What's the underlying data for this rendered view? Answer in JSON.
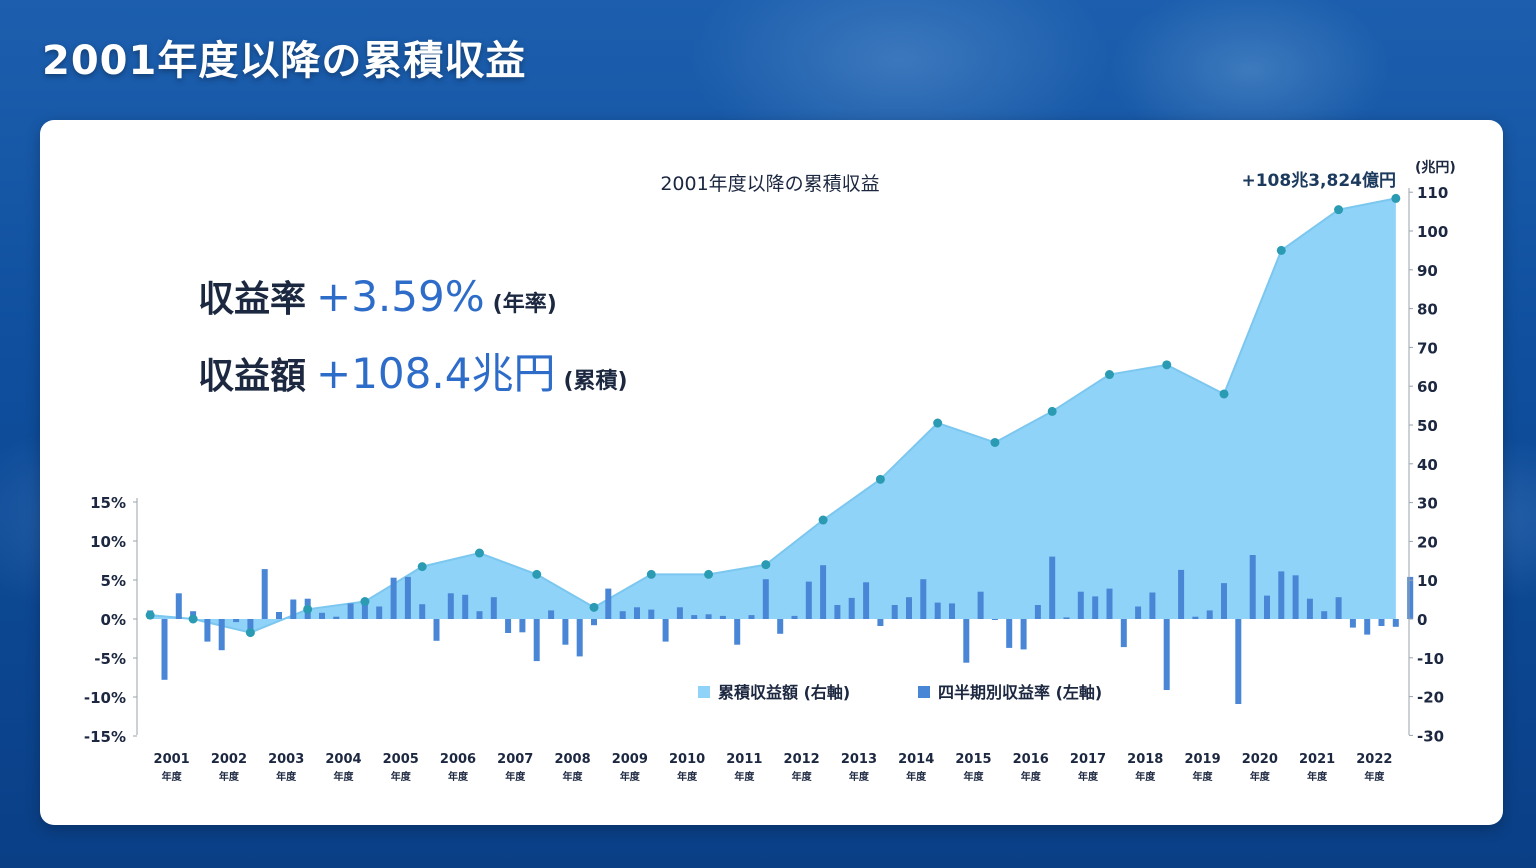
{
  "page": {
    "title": "2001年度以降の累積収益"
  },
  "kpis": [
    {
      "label": "収益率",
      "value": "+3.59%",
      "note": "(年率)"
    },
    {
      "label": "収益額",
      "value": "+108.4兆円",
      "note": "(累積)"
    }
  ],
  "colors": {
    "area": "#8fd3f8",
    "area_line": "#7cc7ef",
    "bar": "#4a86d6",
    "dot": "#2a9bb3",
    "kpi_value": "#2e6cc9"
  },
  "chart_data": {
    "type": "bar+area",
    "title": "2001年度以降の累積収益",
    "callout": "+108兆3,824億円",
    "left_axis": {
      "ticks": [
        "15%",
        "10%",
        "5%",
        "0%",
        "-5%",
        "-10%",
        "-15%"
      ],
      "ylim": [
        -15,
        15
      ]
    },
    "right_axis": {
      "unit": "(兆円)",
      "ticks": [
        "110",
        "100",
        "90",
        "80",
        "70",
        "60",
        "50",
        "40",
        "30",
        "20",
        "10",
        "0",
        "-10",
        "-20",
        "-30"
      ],
      "ylim": [
        -30,
        110
      ]
    },
    "x_labels": [
      {
        "year": "2001",
        "sub": "年度"
      },
      {
        "year": "2002",
        "sub": "年度"
      },
      {
        "year": "2003",
        "sub": "年度"
      },
      {
        "year": "2004",
        "sub": "年度"
      },
      {
        "year": "2005",
        "sub": "年度"
      },
      {
        "year": "2006",
        "sub": "年度"
      },
      {
        "year": "2007",
        "sub": "年度"
      },
      {
        "year": "2008",
        "sub": "年度"
      },
      {
        "year": "2009",
        "sub": "年度"
      },
      {
        "year": "2010",
        "sub": "年度"
      },
      {
        "year": "2011",
        "sub": "年度"
      },
      {
        "year": "2012",
        "sub": "年度"
      },
      {
        "year": "2013",
        "sub": "年度"
      },
      {
        "year": "2014",
        "sub": "年度"
      },
      {
        "year": "2015",
        "sub": "年度"
      },
      {
        "year": "2016",
        "sub": "年度"
      },
      {
        "year": "2017",
        "sub": "年度"
      },
      {
        "year": "2018",
        "sub": "年度"
      },
      {
        "year": "2019",
        "sub": "年度"
      },
      {
        "year": "2020",
        "sub": "年度"
      },
      {
        "year": "2021",
        "sub": "年度"
      },
      {
        "year": "2022",
        "sub": "年度"
      }
    ],
    "series": [
      {
        "name": "累積収益額 (右軸)",
        "type": "area",
        "axis": "right",
        "x": [
          "2001Q1",
          "2001Q4",
          "2002Q4",
          "2003Q4",
          "2004Q4",
          "2005Q4",
          "2006Q4",
          "2007Q4",
          "2008Q4",
          "2009Q4",
          "2010Q4",
          "2011Q4",
          "2012Q4",
          "2013Q4",
          "2014Q4",
          "2015Q4",
          "2016Q4",
          "2017Q4",
          "2018Q4",
          "2019Q4",
          "2020Q4",
          "2021Q4",
          "2022Q4"
        ],
        "values": [
          1.0,
          0.0,
          -3.5,
          2.5,
          4.5,
          13.5,
          17.0,
          11.5,
          3.0,
          11.5,
          11.5,
          14.0,
          25.5,
          36.0,
          50.5,
          45.5,
          53.5,
          63.0,
          65.5,
          58.0,
          95.0,
          105.5,
          108.4
        ]
      },
      {
        "name": "四半期別収益率 (左軸)",
        "type": "bar",
        "axis": "left",
        "values": [
          1.1,
          -7.8,
          3.3,
          1.0,
          -2.9,
          -4.0,
          -0.4,
          -1.5,
          6.4,
          0.9,
          2.5,
          2.6,
          0.8,
          0.3,
          2.0,
          2.1,
          1.6,
          5.3,
          5.4,
          1.9,
          -2.8,
          3.3,
          3.1,
          1.0,
          2.8,
          -1.8,
          -1.7,
          -5.4,
          1.1,
          -3.3,
          -4.8,
          -0.8,
          3.9,
          1.0,
          1.5,
          1.2,
          -2.9,
          1.5,
          0.5,
          0.6,
          0.4,
          -3.3,
          0.5,
          5.1,
          -1.9,
          0.4,
          4.8,
          6.9,
          1.8,
          2.7,
          4.7,
          -0.9,
          1.8,
          2.8,
          5.1,
          2.1,
          2.0,
          -5.6,
          3.5,
          0.0,
          -3.7,
          -3.9,
          1.8,
          8.0,
          0.2,
          3.5,
          2.9,
          3.9,
          -3.6,
          1.6,
          3.4,
          -9.1,
          6.3,
          0.3,
          1.1,
          4.6,
          -10.9,
          8.2,
          3.0,
          6.1,
          5.6,
          2.6,
          1.0,
          2.8,
          -1.1,
          -2.0,
          -0.9,
          -1.0,
          5.4
        ]
      }
    ],
    "legend": {
      "placement": "bottom-right-inside"
    }
  }
}
